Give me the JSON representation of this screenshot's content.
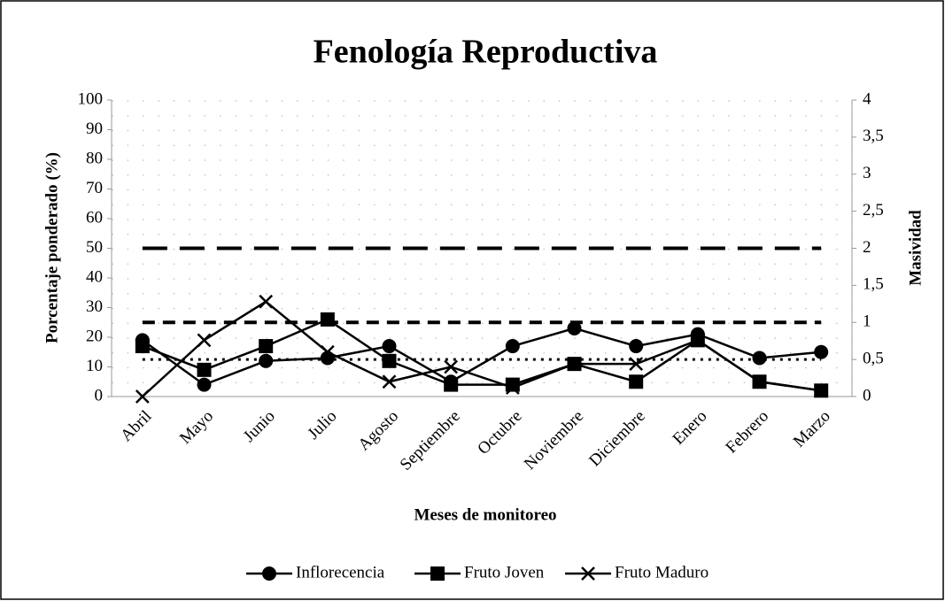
{
  "chart_data": {
    "type": "line",
    "title": "Fenología Reproductiva",
    "x_label": "Meses de monitoreo",
    "y_label": "Porcentaje ponderado (%)",
    "y2_label": "Masividad",
    "categories": [
      "Abril",
      "Mayo",
      "Junio",
      "Julio",
      "Agosto",
      "Septiembre",
      "Octubre",
      "Noviembre",
      "Diciembre",
      "Enero",
      "Febrero",
      "Marzo"
    ],
    "series": [
      {
        "name": "Inflorecencia",
        "color": "#000000",
        "marker": "circle",
        "values": [
          19,
          4,
          12,
          13,
          17,
          5,
          17,
          23,
          17,
          21,
          13,
          15
        ]
      },
      {
        "name": "Fruto Joven",
        "color": "#000000",
        "marker": "square",
        "values": [
          17,
          9,
          17,
          26,
          12,
          4,
          4,
          11,
          5,
          19,
          5,
          2
        ]
      },
      {
        "name": "Fruto Maduro",
        "color": "#000000",
        "marker": "x",
        "values": [
          0,
          19,
          32,
          15,
          5,
          10,
          3,
          11,
          11,
          19,
          5,
          2
        ]
      }
    ],
    "reference_lines": [
      {
        "value": 2,
        "axis": "y2",
        "dash": "long"
      },
      {
        "value": 1,
        "axis": "y2",
        "dash": "short"
      },
      {
        "value": 0.5,
        "axis": "y2",
        "dash": "dot"
      }
    ],
    "ylim": [
      0,
      100
    ],
    "yticks": [
      0,
      10,
      20,
      30,
      40,
      50,
      60,
      70,
      80,
      90,
      100
    ],
    "y2lim": [
      0,
      4
    ],
    "y2ticks": [
      0,
      {
        "value": 0.5,
        "label": "0,5"
      },
      1,
      {
        "value": 1.5,
        "label": "1,5"
      },
      2,
      {
        "value": 2.5,
        "label": "2,5"
      },
      3,
      {
        "value": 3.5,
        "label": "3,5"
      },
      4
    ],
    "grid": true,
    "legend": "bottom"
  }
}
